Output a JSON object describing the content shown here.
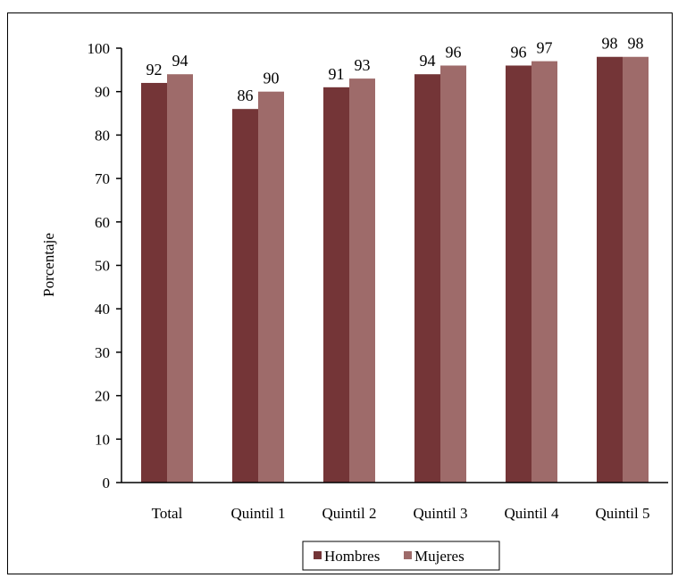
{
  "chart_data": {
    "type": "bar",
    "title": "",
    "xlabel": "",
    "ylabel": "Porcentaje",
    "ylim": [
      0,
      100
    ],
    "yticks": [
      0,
      10,
      20,
      30,
      40,
      50,
      60,
      70,
      80,
      90,
      100
    ],
    "grid": false,
    "legend_position": "bottom",
    "categories": [
      "Total",
      "Quintil 1",
      "Quintil 2",
      "Quintil 3",
      "Quintil 4",
      "Quintil 5"
    ],
    "series": [
      {
        "name": "Hombres",
        "color": "#743537",
        "values": [
          92,
          86,
          91,
          94,
          96,
          98
        ],
        "labels": [
          "92",
          "86",
          "91",
          "94",
          "96",
          "98"
        ]
      },
      {
        "name": "Mujeres",
        "color": "#9e6b6a",
        "values": [
          94,
          90,
          93,
          96,
          97,
          98
        ],
        "labels": [
          "94",
          "90",
          "93",
          "96",
          "97",
          "98"
        ]
      }
    ]
  }
}
